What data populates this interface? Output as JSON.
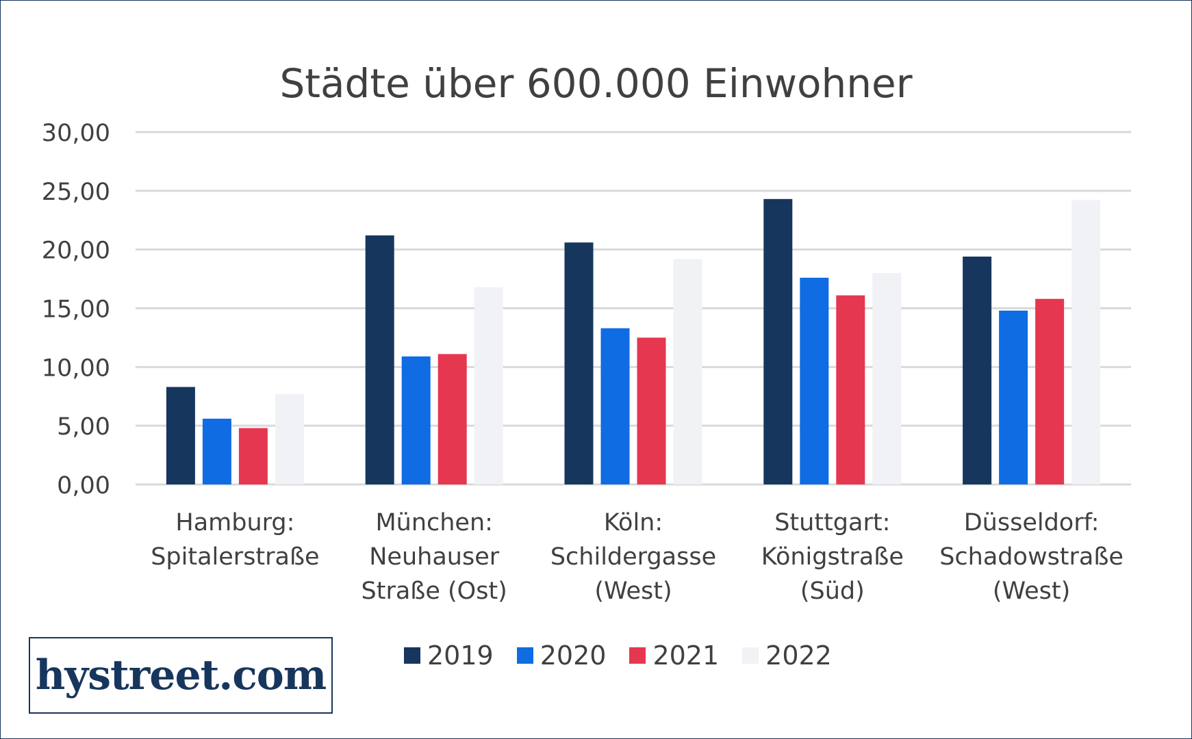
{
  "chart_data": {
    "type": "bar",
    "title": "Städte über 600.000 Einwohner",
    "xlabel": "",
    "ylabel": "",
    "ylim": [
      0,
      30
    ],
    "yticks": [
      "0,00",
      "5,00",
      "10,00",
      "15,00",
      "20,00",
      "25,00",
      "30,00"
    ],
    "grid": true,
    "legend_position": "bottom",
    "categories": [
      [
        "Hamburg:",
        "Spitalerstraße"
      ],
      [
        "München:",
        "Neuhauser",
        "Straße (Ost)"
      ],
      [
        "Köln:",
        "Schildergasse",
        "(West)"
      ],
      [
        "Stuttgart:",
        "Königstraße",
        "(Süd)"
      ],
      [
        "Düsseldorf:",
        "Schadowstraße",
        "(West)"
      ]
    ],
    "series": [
      {
        "name": "2019",
        "color": "#17365d",
        "values": [
          8.3,
          21.2,
          20.6,
          24.3,
          19.4
        ]
      },
      {
        "name": "2020",
        "color": "#0f6ce3",
        "values": [
          5.6,
          10.9,
          13.3,
          17.6,
          14.8
        ]
      },
      {
        "name": "2021",
        "color": "#e63750",
        "values": [
          4.8,
          11.1,
          12.5,
          16.1,
          15.8
        ]
      },
      {
        "name": "2022",
        "color": "#f1f2f6",
        "values": [
          7.7,
          16.8,
          19.2,
          18.0,
          24.2
        ]
      }
    ]
  },
  "logo": {
    "text": "hystreet.com"
  }
}
